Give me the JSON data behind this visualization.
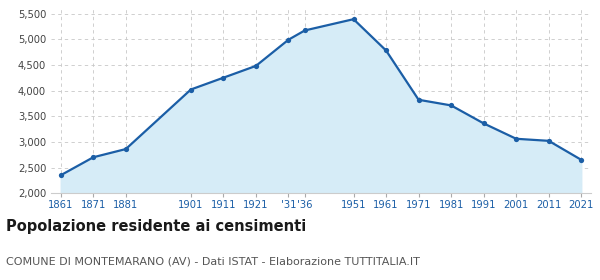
{
  "years": [
    1861,
    1871,
    1881,
    1901,
    1911,
    1921,
    1931,
    1936,
    1951,
    1961,
    1971,
    1981,
    1991,
    2001,
    2011,
    2021
  ],
  "population": [
    2350,
    2700,
    2860,
    4020,
    4250,
    4480,
    4990,
    5170,
    5390,
    4780,
    3820,
    3710,
    3360,
    3060,
    3020,
    2650
  ],
  "x_labels": [
    "1861",
    "1871",
    "1881",
    "",
    "1901",
    "1911",
    "1921",
    "'31",
    "'36",
    "",
    "1951",
    "1961",
    "1971",
    "1981",
    "1991",
    "2001",
    "2011",
    "2021"
  ],
  "line_color": "#1b5ea6",
  "fill_color": "#d6ecf7",
  "marker_color": "#1b5ea6",
  "bg_color": "#ffffff",
  "grid_color": "#c8c8c8",
  "ylim": [
    2000,
    5600
  ],
  "yticks": [
    2000,
    2500,
    3000,
    3500,
    4000,
    4500,
    5000,
    5500
  ],
  "title": "Popolazione residente ai censimenti",
  "subtitle": "COMUNE DI MONTEMARANO (AV) - Dati ISTAT - Elaborazione TUTTITALIA.IT",
  "title_fontsize": 10.5,
  "subtitle_fontsize": 8
}
